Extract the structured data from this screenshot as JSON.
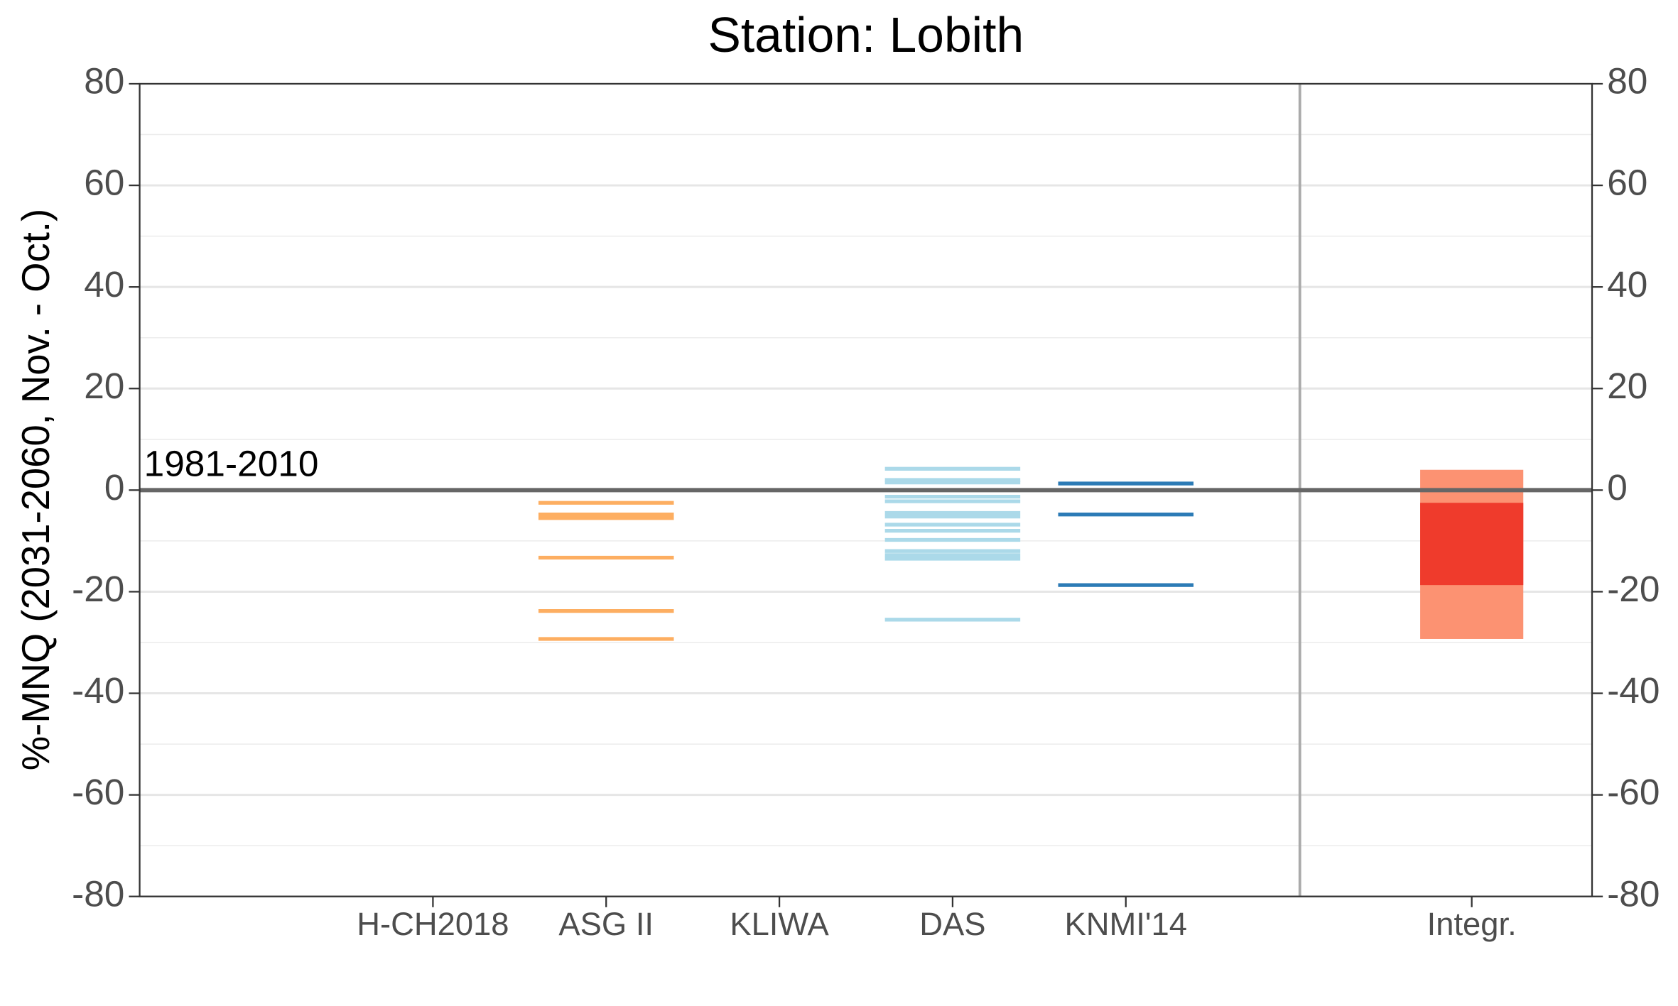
{
  "chart_data": {
    "type": "range",
    "title": "Station: Lobith",
    "y_label": "%-MNQ (2031-2060, Nov. - Oct.)",
    "ylim": [
      -80,
      80
    ],
    "yticks": [
      -80,
      -60,
      -40,
      -20,
      0,
      20,
      40,
      60,
      80
    ],
    "grid": true,
    "reference": {
      "value": 0,
      "label": "1981-2010"
    },
    "series": [
      {
        "name": "H-CH2018",
        "color": "#fdae61",
        "values": []
      },
      {
        "name": "ASG II",
        "color": "#fdae61",
        "values": [
          -2.5,
          -4.8,
          -5.5,
          -13.3,
          -23.8,
          -29.3
        ]
      },
      {
        "name": "KLIWA",
        "color": "#fdae61",
        "values": []
      },
      {
        "name": "DAS",
        "color": "#abd9e9",
        "values": [
          4.2,
          2,
          1.5,
          -1.3,
          -2.2,
          -4.5,
          -5.2,
          -6.8,
          -8,
          -9.8,
          -12,
          -12.8,
          -13.5,
          -25.5
        ]
      },
      {
        "name": "KNMI'14",
        "color": "#2c7bb6",
        "values": [
          1.3,
          -4.8,
          -18.7
        ]
      }
    ],
    "integrated": {
      "name": "Integr.",
      "outer": [
        -29.3,
        4
      ],
      "inner": [
        -18.7,
        -2.5
      ],
      "median": 0,
      "color_outer": "#fc9272",
      "color_inner": "#ef3b2c"
    }
  }
}
